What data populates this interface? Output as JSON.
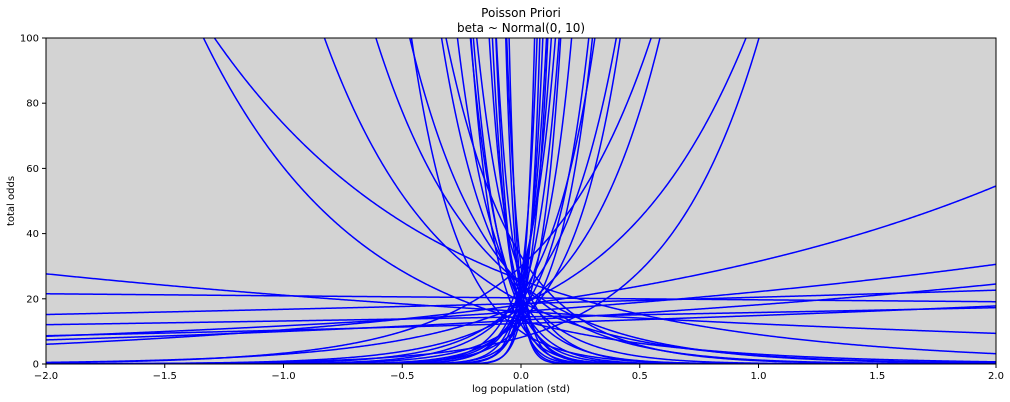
{
  "chart_data": {
    "type": "line",
    "title": "Poisson Priori",
    "subtitle": "beta ~ Normal(0, 10)",
    "xlabel": "log population (std)",
    "ylabel": "total odds",
    "xlim": [
      -2.0,
      2.0
    ],
    "ylim": [
      0,
      100
    ],
    "xticks": [
      "-2.0",
      "-1.5",
      "-1.0",
      "-0.5",
      "0.0",
      "0.5",
      "1.0",
      "1.5",
      "2.0"
    ],
    "yticks": [
      "0",
      "20",
      "40",
      "60",
      "80",
      "100"
    ],
    "grid": false,
    "background": "#d3d3d3",
    "line_color": "#0000ff",
    "series_model": "y = exp(alpha + beta * x)",
    "series": [
      {
        "alpha": 3.25,
        "beta": -1.05
      },
      {
        "alpha": 2.78,
        "beta": -0.27
      },
      {
        "alpha": 2.78,
        "beta": 0.32
      },
      {
        "alpha": 2.9,
        "beta": 0.55
      },
      {
        "alpha": 2.67,
        "beta": 0.09
      },
      {
        "alpha": 2.52,
        "beta": 0.18
      },
      {
        "alpha": 2.92,
        "beta": 0.1
      },
      {
        "alpha": 3.01,
        "beta": -0.03
      },
      {
        "alpha": 2.6,
        "beta": 0.3
      },
      {
        "alpha": 3.2,
        "beta": -2.3
      },
      {
        "alpha": 3.2,
        "beta": -3.0
      },
      {
        "alpha": 3.1,
        "beta": -4.5
      },
      {
        "alpha": 3.0,
        "beta": -6.0
      },
      {
        "alpha": 2.9,
        "beta": -8.0
      },
      {
        "alpha": 3.0,
        "beta": -12.0
      },
      {
        "alpha": 2.8,
        "beta": -15.0
      },
      {
        "alpha": 3.4,
        "beta": -20.0
      },
      {
        "alpha": 3.0,
        "beta": -25.0
      },
      {
        "alpha": 2.7,
        "beta": -18.0
      },
      {
        "alpha": 3.1,
        "beta": -30.0
      },
      {
        "alpha": 2.5,
        "beta": -10.0
      },
      {
        "alpha": 2.3,
        "beta": -5.0
      },
      {
        "alpha": 3.5,
        "beta": -3.5
      },
      {
        "alpha": 2.6,
        "beta": -1.5
      },
      {
        "alpha": 3.3,
        "beta": -7.0
      },
      {
        "alpha": 2.95,
        "beta": -2.0
      },
      {
        "alpha": 2.8,
        "beta": -9.0
      },
      {
        "alpha": 3.15,
        "beta": -14.0
      },
      {
        "alpha": 2.1,
        "beta": 2.5
      },
      {
        "alpha": 2.85,
        "beta": 3.0
      },
      {
        "alpha": 3.0,
        "beta": 4.0
      },
      {
        "alpha": 3.05,
        "beta": 5.0
      },
      {
        "alpha": 2.75,
        "beta": 6.5
      },
      {
        "alpha": 2.9,
        "beta": 8.0
      },
      {
        "alpha": 3.0,
        "beta": 10.0
      },
      {
        "alpha": 2.6,
        "beta": 12.0
      },
      {
        "alpha": 3.1,
        "beta": 14.0
      },
      {
        "alpha": 2.8,
        "beta": 16.0
      },
      {
        "alpha": 3.25,
        "beta": 20.0
      },
      {
        "alpha": 2.7,
        "beta": 24.0
      },
      {
        "alpha": 3.0,
        "beta": 28.0
      },
      {
        "alpha": 3.3,
        "beta": 9.0
      },
      {
        "alpha": 2.9,
        "beta": 1.8
      },
      {
        "alpha": 2.6,
        "beta": 4.8
      },
      {
        "alpha": 3.4,
        "beta": 2.2
      },
      {
        "alpha": 2.95,
        "beta": 18.0
      },
      {
        "alpha": 2.5,
        "beta": 7.0
      },
      {
        "alpha": 3.2,
        "beta": 11.0
      }
    ]
  }
}
